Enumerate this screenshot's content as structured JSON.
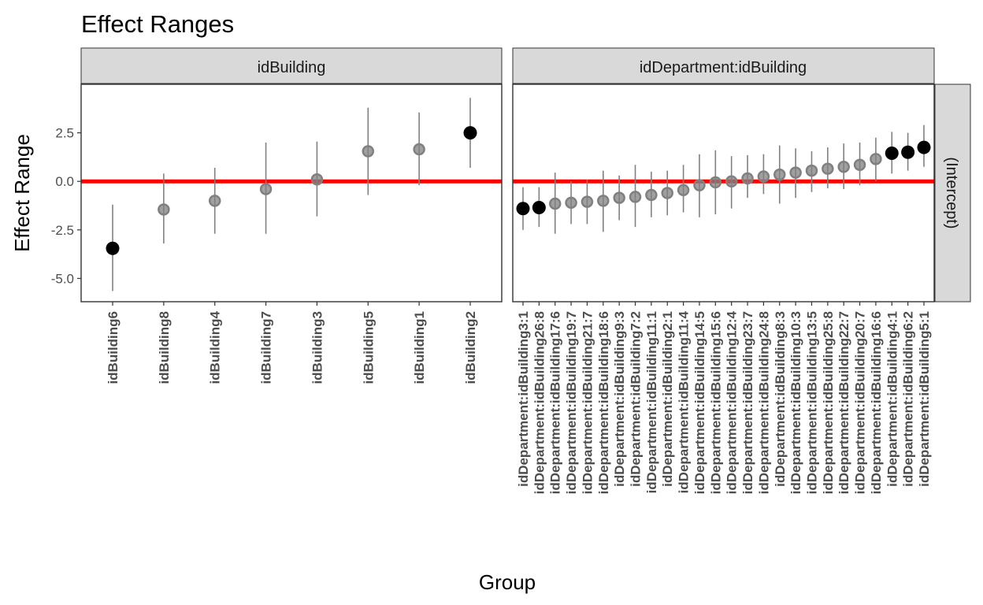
{
  "chart_data": {
    "type": "scatter",
    "title": "Effect Ranges",
    "xlabel": "Group",
    "ylabel": "Effect Range",
    "ylim": [
      -6.2,
      5.0
    ],
    "yticks": [
      2.5,
      0.0,
      -2.5,
      -5.0
    ],
    "ytick_labels": [
      "2.5",
      "0.0",
      "-2.5",
      "-5.0"
    ],
    "reference_line": {
      "y": 0,
      "color": "#ff0000"
    },
    "row_strip": "(Intercept)",
    "colors": {
      "highlight": "#000000",
      "normal": "#808080",
      "interval": "#808080",
      "strip_fill": "#d9d9d9",
      "reference": "#ff0000"
    },
    "panels": [
      {
        "strip": "idBuilding",
        "points": [
          {
            "label": "idBuilding6",
            "y": -3.45,
            "lo": -5.65,
            "hi": -1.2,
            "highlight": true
          },
          {
            "label": "idBuilding8",
            "y": -1.45,
            "lo": -3.2,
            "hi": 0.4,
            "highlight": false
          },
          {
            "label": "idBuilding4",
            "y": -1.0,
            "lo": -2.7,
            "hi": 0.7,
            "highlight": false
          },
          {
            "label": "idBuilding7",
            "y": -0.4,
            "lo": -2.7,
            "hi": 2.0,
            "highlight": false
          },
          {
            "label": "idBuilding3",
            "y": 0.1,
            "lo": -1.8,
            "hi": 2.05,
            "highlight": false
          },
          {
            "label": "idBuilding5",
            "y": 1.55,
            "lo": -0.7,
            "hi": 3.8,
            "highlight": false
          },
          {
            "label": "idBuilding1",
            "y": 1.65,
            "lo": -0.2,
            "hi": 3.55,
            "highlight": false
          },
          {
            "label": "idBuilding2",
            "y": 2.5,
            "lo": 0.7,
            "hi": 4.3,
            "highlight": true
          }
        ]
      },
      {
        "strip": "idDepartment:idBuilding",
        "points": [
          {
            "label": "idDepartment:idBuilding3:1",
            "y": -1.4,
            "lo": -2.5,
            "hi": -0.3,
            "highlight": true
          },
          {
            "label": "idDepartment:idBuilding26:8",
            "y": -1.35,
            "lo": -2.35,
            "hi": -0.3,
            "highlight": true
          },
          {
            "label": "idDepartment:idBuilding17:6",
            "y": -1.15,
            "lo": -2.7,
            "hi": 0.45,
            "highlight": false
          },
          {
            "label": "idDepartment:idBuilding19:7",
            "y": -1.1,
            "lo": -2.2,
            "hi": 0.0,
            "highlight": false
          },
          {
            "label": "idDepartment:idBuilding21:7",
            "y": -1.05,
            "lo": -2.2,
            "hi": 0.1,
            "highlight": false
          },
          {
            "label": "idDepartment:idBuilding18:6",
            "y": -1.0,
            "lo": -2.6,
            "hi": 0.55,
            "highlight": false
          },
          {
            "label": "idDepartment:idBuilding9:3",
            "y": -0.85,
            "lo": -2.0,
            "hi": 0.3,
            "highlight": false
          },
          {
            "label": "idDepartment:idBuilding7:2",
            "y": -0.8,
            "lo": -2.35,
            "hi": 0.85,
            "highlight": false
          },
          {
            "label": "idDepartment:idBuilding11:1",
            "y": -0.7,
            "lo": -1.85,
            "hi": 0.5,
            "highlight": false
          },
          {
            "label": "idDepartment:idBuilding2:1",
            "y": -0.6,
            "lo": -1.75,
            "hi": 0.55,
            "highlight": false
          },
          {
            "label": "idDepartment:idBuilding11:4",
            "y": -0.45,
            "lo": -1.6,
            "hi": 0.85,
            "highlight": false
          },
          {
            "label": "idDepartment:idBuilding14:5",
            "y": -0.2,
            "lo": -1.85,
            "hi": 1.4,
            "highlight": false
          },
          {
            "label": "idDepartment:idBuilding15:6",
            "y": -0.05,
            "lo": -1.7,
            "hi": 1.6,
            "highlight": false
          },
          {
            "label": "idDepartment:idBuilding12:4",
            "y": 0.0,
            "lo": -1.4,
            "hi": 1.3,
            "highlight": false
          },
          {
            "label": "idDepartment:idBuilding23:7",
            "y": 0.15,
            "lo": -0.85,
            "hi": 1.35,
            "highlight": false
          },
          {
            "label": "idDepartment:idBuilding24:8",
            "y": 0.25,
            "lo": -0.65,
            "hi": 1.4,
            "highlight": false
          },
          {
            "label": "idDepartment:idBuilding8:3",
            "y": 0.35,
            "lo": -1.15,
            "hi": 1.85,
            "highlight": false
          },
          {
            "label": "idDepartment:idBuilding10:3",
            "y": 0.45,
            "lo": -0.85,
            "hi": 1.7,
            "highlight": false
          },
          {
            "label": "idDepartment:idBuilding13:5",
            "y": 0.55,
            "lo": -0.55,
            "hi": 1.55,
            "highlight": false
          },
          {
            "label": "idDepartment:idBuilding25:8",
            "y": 0.65,
            "lo": -0.35,
            "hi": 1.75,
            "highlight": false
          },
          {
            "label": "idDepartment:idBuilding22:7",
            "y": 0.75,
            "lo": -0.4,
            "hi": 1.95,
            "highlight": false
          },
          {
            "label": "idDepartment:idBuilding20:7",
            "y": 0.85,
            "lo": -0.2,
            "hi": 2.0,
            "highlight": false
          },
          {
            "label": "idDepartment:idBuilding16:6",
            "y": 1.15,
            "lo": 0.0,
            "hi": 2.25,
            "highlight": false
          },
          {
            "label": "idDepartment:idBuilding4:1",
            "y": 1.45,
            "lo": 0.4,
            "hi": 2.55,
            "highlight": true
          },
          {
            "label": "idDepartment:idBuilding6:2",
            "y": 1.5,
            "lo": 0.55,
            "hi": 2.5,
            "highlight": true
          },
          {
            "label": "idDepartment:idBuilding5:1",
            "y": 1.75,
            "lo": 0.75,
            "hi": 2.9,
            "highlight": true
          }
        ]
      }
    ]
  }
}
